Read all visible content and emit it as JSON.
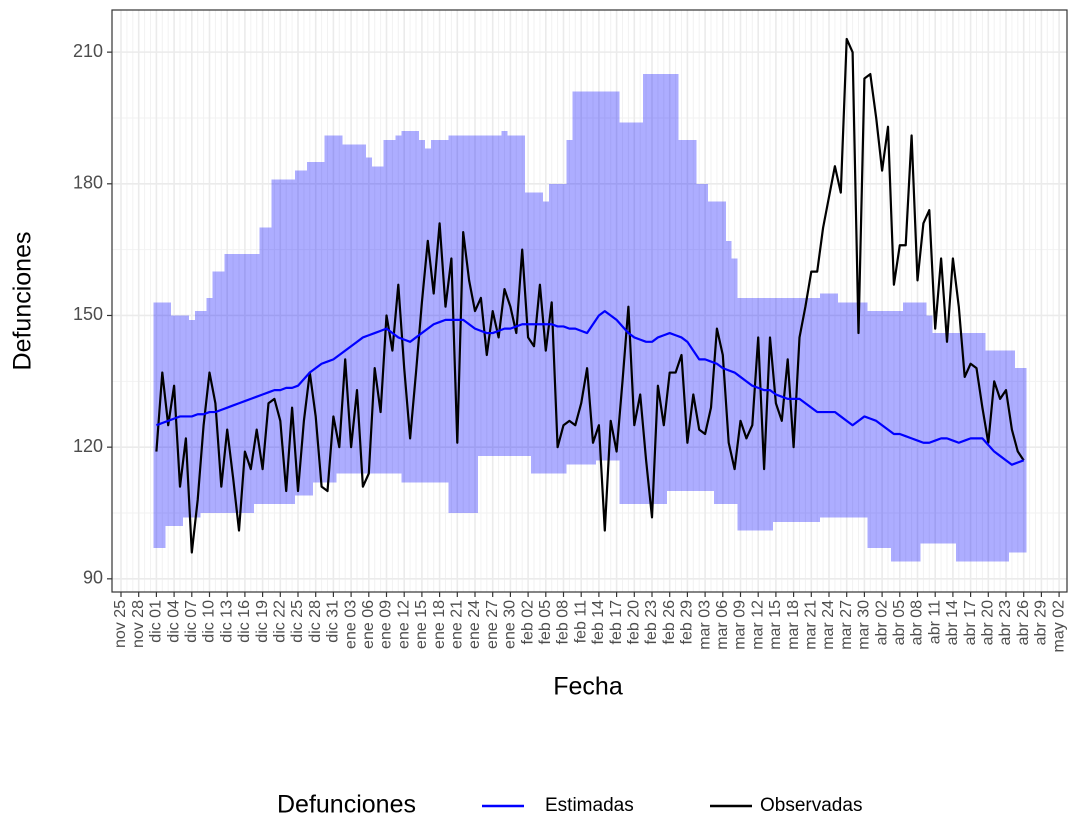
{
  "chart_data": {
    "type": "line",
    "x_label": "Fecha",
    "y_label": "Defunciones",
    "legend_title": "Defunciones",
    "legend": "bottom",
    "grid": true,
    "ylim": [
      87,
      219.6
    ],
    "yticks": [
      90,
      120,
      150,
      180,
      210
    ],
    "categories": [
      "nov 25",
      null,
      null,
      "nov 28",
      null,
      null,
      "dic 01",
      null,
      null,
      "dic 04",
      null,
      null,
      "dic 07",
      null,
      null,
      "dic 10",
      null,
      null,
      "dic 13",
      null,
      null,
      "dic 16",
      null,
      null,
      "dic 19",
      null,
      null,
      "dic 22",
      null,
      null,
      "dic 25",
      null,
      null,
      "dic 28",
      null,
      null,
      "dic 31",
      null,
      null,
      "ene 03",
      null,
      null,
      "ene 06",
      null,
      null,
      "ene 09",
      null,
      null,
      "ene 12",
      null,
      null,
      "ene 15",
      null,
      null,
      "ene 18",
      null,
      null,
      "ene 21",
      null,
      null,
      "ene 24",
      null,
      null,
      "ene 27",
      null,
      null,
      "ene 30",
      null,
      null,
      "feb 02",
      null,
      null,
      "feb 05",
      null,
      null,
      "feb 08",
      null,
      null,
      "feb 11",
      null,
      null,
      "feb 14",
      null,
      null,
      "feb 17",
      null,
      null,
      "feb 20",
      null,
      null,
      "feb 23",
      null,
      null,
      "feb 26",
      null,
      null,
      "feb 29",
      null,
      null,
      "mar 03",
      null,
      null,
      "mar 06",
      null,
      null,
      "mar 09",
      null,
      null,
      "mar 12",
      null,
      null,
      "mar 15",
      null,
      null,
      "mar 18",
      null,
      null,
      "mar 21",
      null,
      null,
      "mar 24",
      null,
      null,
      "mar 27",
      null,
      null,
      "mar 30",
      null,
      null,
      "abr 02",
      null,
      null,
      "abr 05",
      null,
      null,
      "abr 08",
      null,
      null,
      "abr 11",
      null,
      null,
      "abr 14",
      null,
      null,
      "abr 17",
      null,
      null,
      "abr 20",
      null,
      null,
      "abr 23",
      null,
      null,
      "abr 26",
      null,
      null,
      "abr 29",
      null,
      null,
      "may 02"
    ],
    "band": {
      "color": "#0000ff",
      "upper": [
        null,
        null,
        null,
        null,
        null,
        null,
        153,
        153,
        153,
        150,
        150,
        150,
        149,
        151,
        151,
        154,
        160,
        160,
        164,
        164,
        164,
        164,
        164,
        164,
        170,
        170,
        181,
        181,
        181,
        181,
        183,
        183,
        185,
        185,
        185,
        191,
        191,
        191,
        189,
        189,
        189,
        189,
        186,
        184,
        184,
        190,
        190,
        191,
        192,
        192,
        192,
        190,
        188,
        190,
        190,
        190,
        191,
        191,
        191,
        191,
        191,
        191,
        191,
        191,
        191,
        192,
        191,
        191,
        191,
        178,
        178,
        178,
        176,
        180,
        180,
        180,
        190,
        201,
        201,
        201,
        201,
        201,
        201,
        201,
        201,
        194,
        194,
        194,
        194,
        205,
        205,
        205,
        205,
        205,
        205,
        190,
        190,
        190,
        180,
        180,
        176,
        176,
        176,
        167,
        163,
        154,
        154,
        154,
        154,
        154,
        154,
        154,
        154,
        154,
        154,
        154,
        154,
        154,
        154,
        155,
        155,
        155,
        153,
        153,
        153,
        153,
        153,
        151,
        151,
        151,
        151,
        151,
        151,
        153,
        153,
        153,
        153,
        150,
        146,
        146,
        146,
        146,
        146,
        146,
        146,
        146,
        146,
        142,
        142,
        142,
        142,
        142,
        138,
        138,
        null,
        null,
        null,
        null,
        null,
        null
      ],
      "lower": [
        null,
        null,
        null,
        null,
        null,
        null,
        97,
        97,
        102,
        102,
        102,
        104,
        104,
        104,
        105,
        105,
        105,
        105,
        105,
        105,
        105,
        105,
        105,
        107,
        107,
        107,
        107,
        107,
        107,
        107,
        109,
        109,
        109,
        112,
        112,
        112,
        112,
        114,
        114,
        114,
        114,
        114,
        114,
        114,
        114,
        114,
        114,
        114,
        112,
        112,
        112,
        112,
        112,
        112,
        112,
        112,
        105,
        105,
        105,
        105,
        105,
        118,
        118,
        118,
        118,
        118,
        118,
        118,
        118,
        118,
        114,
        114,
        114,
        114,
        114,
        114,
        116,
        116,
        116,
        116,
        116,
        117,
        117,
        117,
        117,
        107,
        107,
        107,
        107,
        107,
        107,
        107,
        107,
        110,
        110,
        110,
        110,
        110,
        110,
        110,
        110,
        107,
        107,
        107,
        107,
        101,
        101,
        101,
        101,
        101,
        101,
        103,
        103,
        103,
        103,
        103,
        103,
        103,
        103,
        104,
        104,
        104,
        104,
        104,
        104,
        104,
        104,
        97,
        97,
        97,
        97,
        94,
        94,
        94,
        94,
        94,
        98,
        98,
        98,
        98,
        98,
        98,
        94,
        94,
        94,
        94,
        94,
        94,
        94,
        94,
        94,
        96,
        96,
        96,
        null,
        null,
        null,
        null,
        null,
        null
      ]
    },
    "series": [
      {
        "name": "Estimadas",
        "color": "#0000ff",
        "values": [
          null,
          null,
          null,
          null,
          null,
          null,
          125,
          125.5,
          126,
          126.5,
          127,
          127,
          127,
          127.5,
          127.5,
          128,
          128,
          128.5,
          129,
          129.5,
          130,
          130.5,
          131,
          131.5,
          132,
          132.5,
          133,
          133,
          133.5,
          133.5,
          134,
          135.5,
          137,
          138,
          139,
          139.5,
          140,
          141,
          142,
          143,
          144,
          145,
          145.5,
          146,
          146.5,
          147,
          146,
          145,
          144.5,
          144,
          145,
          146,
          147,
          148,
          148.5,
          149,
          149,
          149,
          149,
          148,
          147,
          146.5,
          146,
          146,
          146.5,
          147,
          147,
          147.5,
          148,
          148,
          148,
          148,
          148,
          148,
          147.5,
          147.5,
          147,
          147,
          146.5,
          146,
          148,
          150,
          151,
          150,
          149,
          147.5,
          146,
          145,
          144.5,
          144,
          144,
          145,
          145.5,
          146,
          145.5,
          145,
          144,
          142,
          140,
          140,
          139.5,
          139,
          138,
          137.5,
          137,
          136,
          135,
          134,
          133.5,
          133,
          133,
          132,
          131.5,
          131,
          131,
          131,
          130,
          129,
          128,
          128,
          128,
          128,
          127,
          126,
          125,
          126,
          127,
          126.5,
          126,
          125,
          124,
          123,
          123,
          122.5,
          122,
          121.5,
          121,
          121,
          121.5,
          122,
          122,
          121.5,
          121,
          121.5,
          122,
          122,
          122,
          120.5,
          119,
          118,
          117,
          116,
          116.5,
          117,
          null,
          null,
          null,
          null,
          null,
          null
        ]
      },
      {
        "name": "Observadas",
        "color": "#000000",
        "values": [
          null,
          null,
          null,
          null,
          null,
          null,
          119,
          137,
          125,
          134,
          111,
          122,
          96,
          108,
          125,
          137,
          130,
          111,
          124,
          113,
          101,
          119,
          115,
          124,
          115,
          130,
          131,
          126,
          110,
          129,
          110,
          126,
          137,
          127,
          111,
          110,
          127,
          120,
          140,
          120,
          133,
          111,
          114,
          138,
          128,
          150,
          142,
          157,
          138,
          122,
          137,
          153,
          167,
          155,
          171,
          152,
          163,
          121,
          169,
          158,
          151,
          154,
          141,
          151,
          145,
          156,
          152,
          146,
          165,
          145,
          143,
          157,
          142,
          153,
          120,
          125,
          126,
          125,
          130,
          138,
          121,
          125,
          101,
          126,
          119,
          135,
          152,
          125,
          132,
          117,
          104,
          134,
          125,
          137,
          137,
          141,
          121,
          132,
          124,
          123,
          129,
          147,
          141,
          121,
          115,
          126,
          122,
          125,
          145,
          115,
          145,
          130,
          126,
          140,
          120,
          145,
          152,
          160,
          160,
          170,
          177,
          184,
          178,
          213,
          210,
          146,
          204,
          205,
          195,
          183,
          193,
          157,
          166,
          166,
          191,
          158,
          171,
          174,
          147,
          163,
          144,
          163,
          152,
          136,
          139,
          138,
          129,
          121,
          135,
          131,
          133,
          124,
          119,
          117,
          null,
          null,
          null,
          null,
          null,
          null
        ]
      }
    ]
  }
}
